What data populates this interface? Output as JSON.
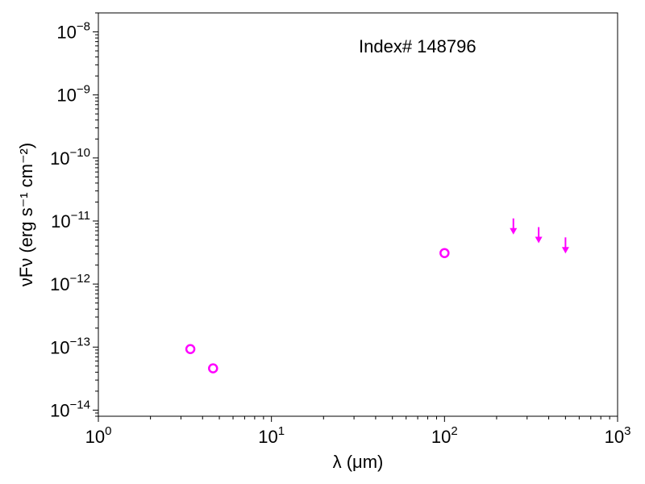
{
  "chart_data": {
    "type": "scatter",
    "title": "",
    "annotation": "Index# 148796",
    "xlabel": "λ (μm)",
    "ylabel": "νFν (erg s⁻¹ cm⁻²)",
    "xscale": "log",
    "yscale": "log",
    "xlim": [
      1,
      1000
    ],
    "ylim": [
      8e-15,
      2e-08
    ],
    "x_ticks": [
      1,
      10,
      100,
      1000
    ],
    "x_tick_labels": [
      {
        "base": "10",
        "exp": "0"
      },
      {
        "base": "10",
        "exp": "1"
      },
      {
        "base": "10",
        "exp": "2"
      },
      {
        "base": "10",
        "exp": "3"
      }
    ],
    "y_ticks": [
      1e-14,
      1e-13,
      1e-12,
      1e-11,
      1e-10,
      1e-09,
      1e-08
    ],
    "y_tick_labels": [
      {
        "base": "10",
        "exp": "−14"
      },
      {
        "base": "10",
        "exp": "−13"
      },
      {
        "base": "10",
        "exp": "−12"
      },
      {
        "base": "10",
        "exp": "−11"
      },
      {
        "base": "10",
        "exp": "−10"
      },
      {
        "base": "10",
        "exp": "−9"
      },
      {
        "base": "10",
        "exp": "−8"
      }
    ],
    "grid": false,
    "color": "#ff00ff",
    "series": [
      {
        "marker": "open-circle",
        "x": [
          3.4,
          4.6,
          100
        ],
        "y": [
          9.3e-14,
          4.6e-14,
          3.1e-12
        ]
      },
      {
        "marker": "upper-limit-arrow",
        "x": [
          250,
          350,
          500
        ],
        "y": [
          1.1e-11,
          8e-12,
          5.5e-12
        ]
      }
    ]
  }
}
